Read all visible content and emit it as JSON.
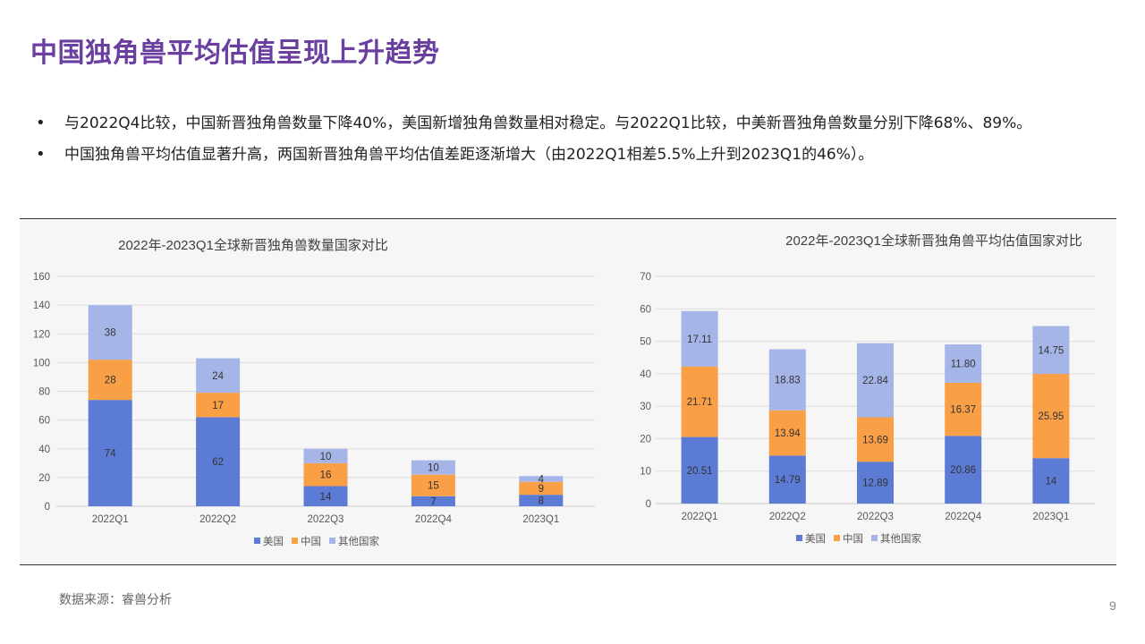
{
  "page": {
    "title": "中国独角兽平均估值呈现上升趋势",
    "bullets": [
      "与2022Q4比较，中国新晋独角兽数量下降40%，美国新增独角兽数量相对稳定。与2022Q1比较，中美新晋独角兽数量分别下降68%、89%。",
      "中国独角兽平均估值显著升高，两国新晋独角兽平均估值差距逐渐增大（由2022Q1相差5.5%上升到2023Q1的46%）。"
    ],
    "source": "数据来源：睿兽分析",
    "page_number": "9"
  },
  "colors": {
    "美国": "#5b7bd5",
    "中国": "#f99f45",
    "其他国家": "#a5b5e8"
  },
  "chart_data": [
    {
      "type": "bar",
      "stacked": true,
      "title": "2022年-2023Q1全球新晋独角兽数量国家对比",
      "categories": [
        "2022Q1",
        "2022Q2",
        "2022Q3",
        "2022Q4",
        "2023Q1"
      ],
      "series": [
        {
          "name": "美国",
          "values": [
            74,
            62,
            14,
            7,
            8
          ],
          "labels": [
            "74",
            "62",
            "14",
            "7",
            "8"
          ]
        },
        {
          "name": "中国",
          "values": [
            28,
            17,
            16,
            15,
            9
          ],
          "labels": [
            "28",
            "17",
            "16",
            "15",
            "9"
          ]
        },
        {
          "name": "其他国家",
          "values": [
            38,
            24,
            10,
            10,
            4
          ],
          "labels": [
            "38",
            "24",
            "10",
            "10",
            "4"
          ]
        }
      ],
      "ylim": [
        0,
        160
      ],
      "yticks": [
        "0",
        "20",
        "40",
        "60",
        "80",
        "100",
        "120",
        "140",
        "160"
      ],
      "grid": true,
      "legend": "bottom"
    },
    {
      "type": "bar",
      "stacked": true,
      "title": "2022年-2023Q1全球新晋独角兽平均估值国家对比",
      "categories": [
        "2022Q1",
        "2022Q2",
        "2022Q3",
        "2022Q4",
        "2023Q1"
      ],
      "series": [
        {
          "name": "美国",
          "values": [
            20.51,
            14.79,
            12.89,
            20.86,
            14
          ],
          "labels": [
            "20.51",
            "14.79",
            "12.89",
            "20.86",
            "14"
          ]
        },
        {
          "name": "中国",
          "values": [
            21.71,
            13.94,
            13.69,
            16.37,
            25.95
          ],
          "labels": [
            "21.71",
            "13.94",
            "13.69",
            "16.37",
            "25.95"
          ]
        },
        {
          "name": "其他国家",
          "values": [
            17.11,
            18.83,
            22.84,
            11.8,
            14.75
          ],
          "labels": [
            "17.11",
            "18.83",
            "22.84",
            "11.80",
            "14.75"
          ]
        }
      ],
      "ylim": [
        0,
        70
      ],
      "yticks": [
        "0",
        "10",
        "20",
        "30",
        "40",
        "50",
        "60",
        "70"
      ],
      "grid": true,
      "legend": "bottom"
    }
  ]
}
